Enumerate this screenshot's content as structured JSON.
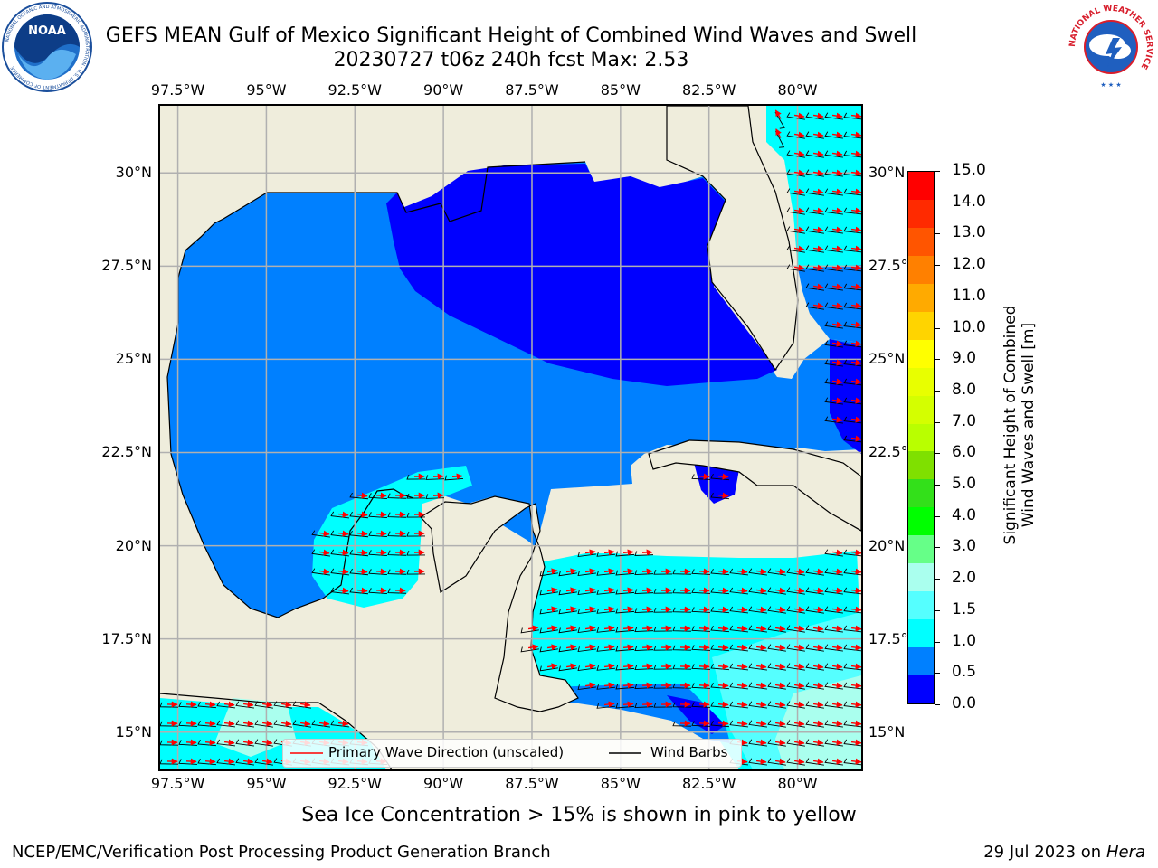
{
  "title": {
    "line1": "GEFS MEAN Gulf of Mexico Significant Height of Combined Wind Waves and Swell",
    "line2": "20230727 t06z 240h fcst   Max: 2.53"
  },
  "map": {
    "lon_ticks": [
      "97.5°W",
      "95°W",
      "92.5°W",
      "90°W",
      "87.5°W",
      "85°W",
      "82.5°W",
      "80°W"
    ],
    "lat_ticks": [
      "30°N",
      "27.5°N",
      "25°N",
      "22.5°N",
      "20°N",
      "17.5°N",
      "15°N"
    ],
    "lon_values": [
      -97.5,
      -95,
      -92.5,
      -90,
      -87.5,
      -85,
      -82.5,
      -80
    ],
    "lat_values": [
      30,
      27.5,
      25,
      22.5,
      20,
      17.5,
      15
    ],
    "lon_range": [
      -98.0,
      -78.2
    ],
    "lat_range": [
      14.0,
      31.8
    ],
    "land_color": "#efeddc",
    "gridline_color": "#b0b0b0"
  },
  "legend": {
    "wave_label": "Primary Wave Direction (unscaled)",
    "barb_label": "Wind Barbs",
    "wave_color": "#ff0000",
    "barb_color": "#000000"
  },
  "colorbar": {
    "title_line1": "Significant Height of Combined",
    "title_line2": "Wind Waves and Swell [m]",
    "tick_labels": [
      "15.0",
      "14.0",
      "13.0",
      "12.0",
      "11.0",
      "10.0",
      "9.0",
      "8.0",
      "7.0",
      "6.0",
      "5.0",
      "4.0",
      "3.0",
      "2.0",
      "1.5",
      "1.0",
      "0.5",
      "0.0"
    ],
    "colors_top_to_bottom": [
      "#ff0000",
      "#ff2a00",
      "#ff5500",
      "#ff8000",
      "#ffaa00",
      "#ffd400",
      "#ffff00",
      "#e8ff00",
      "#d4ff00",
      "#b9ff00",
      "#7fe000",
      "#33e01a",
      "#00ff00",
      "#66ff88",
      "#aaffee",
      "#55ffff",
      "#00ffff",
      "#0080ff",
      "#0000ff"
    ]
  },
  "subtitle": "Sea Ice Concentration > 15% is shown in pink to yellow",
  "footer": {
    "left": "NCEP/EMC/Verification Post Processing Product Generation Branch",
    "right_date": "29 Jul 2023 on ",
    "right_host": "Hera"
  },
  "logos": {
    "left": "NOAA",
    "left_ring": "NATIONAL OCEANIC AND ATMOSPHERIC ADMINISTRATION · U.S. DEPARTMENT OF COMMERCE",
    "right_ring": "NATIONAL WEATHER SERVICE"
  }
}
